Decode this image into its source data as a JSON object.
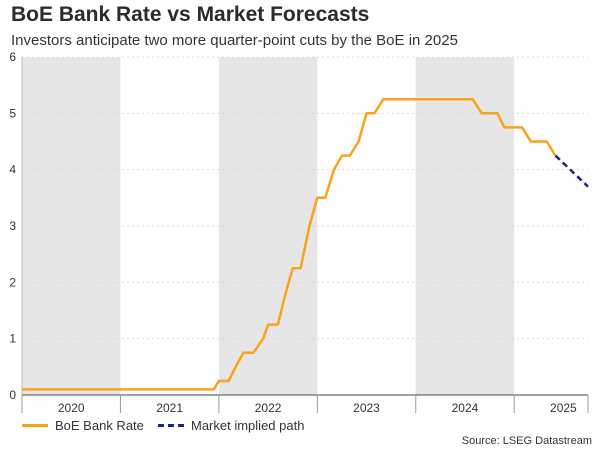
{
  "header": {
    "title": "BoE Bank Rate vs Market Forecasts",
    "subtitle": "Investors anticipate two more quarter-point cuts by the BoE in 2025"
  },
  "source": "Source: LSEG Datastream",
  "colors": {
    "bank_rate": "#f9a21b",
    "market_path": "#1a237e",
    "shade": "#e6e6e6",
    "grid": "#dcdcdc",
    "axis": "#444444"
  },
  "chart_data": {
    "type": "line",
    "title": "BoE Bank Rate vs Market Forecasts",
    "subtitle": "Investors anticipate two more quarter-point cuts by the BoE in 2025",
    "xlabel": "",
    "ylabel": "",
    "xlim": [
      2020.0,
      2025.75
    ],
    "ylim": [
      0,
      6
    ],
    "yticks": [
      0,
      1,
      2,
      3,
      4,
      5,
      6
    ],
    "xticks": [
      "2020",
      "2021",
      "2022",
      "2023",
      "2024",
      "2025"
    ],
    "shaded_years": [
      "2020",
      "2022",
      "2024"
    ],
    "grid": "horizontal dotted",
    "legend_position": "bottom-left",
    "series": [
      {
        "name": "BoE Bank Rate",
        "style": "solid",
        "color": "#f9a21b",
        "points": [
          [
            2020.0,
            0.1
          ],
          [
            2021.0,
            0.1
          ],
          [
            2021.95,
            0.1
          ],
          [
            2022.0,
            0.25
          ],
          [
            2022.1,
            0.25
          ],
          [
            2022.17,
            0.5
          ],
          [
            2022.25,
            0.75
          ],
          [
            2022.35,
            0.75
          ],
          [
            2022.45,
            1.0
          ],
          [
            2022.5,
            1.25
          ],
          [
            2022.6,
            1.25
          ],
          [
            2022.67,
            1.75
          ],
          [
            2022.75,
            2.25
          ],
          [
            2022.83,
            2.25
          ],
          [
            2022.92,
            3.0
          ],
          [
            2023.0,
            3.5
          ],
          [
            2023.08,
            3.5
          ],
          [
            2023.17,
            4.0
          ],
          [
            2023.25,
            4.25
          ],
          [
            2023.33,
            4.25
          ],
          [
            2023.42,
            4.5
          ],
          [
            2023.5,
            5.0
          ],
          [
            2023.58,
            5.0
          ],
          [
            2023.67,
            5.25
          ],
          [
            2024.58,
            5.25
          ],
          [
            2024.67,
            5.0
          ],
          [
            2024.83,
            5.0
          ],
          [
            2024.9,
            4.75
          ],
          [
            2025.08,
            4.75
          ],
          [
            2025.17,
            4.5
          ],
          [
            2025.33,
            4.5
          ],
          [
            2025.42,
            4.25
          ]
        ]
      },
      {
        "name": "Market implied path",
        "style": "dashed",
        "color": "#1a237e",
        "points": [
          [
            2025.42,
            4.25
          ],
          [
            2025.75,
            3.7
          ]
        ]
      }
    ]
  }
}
